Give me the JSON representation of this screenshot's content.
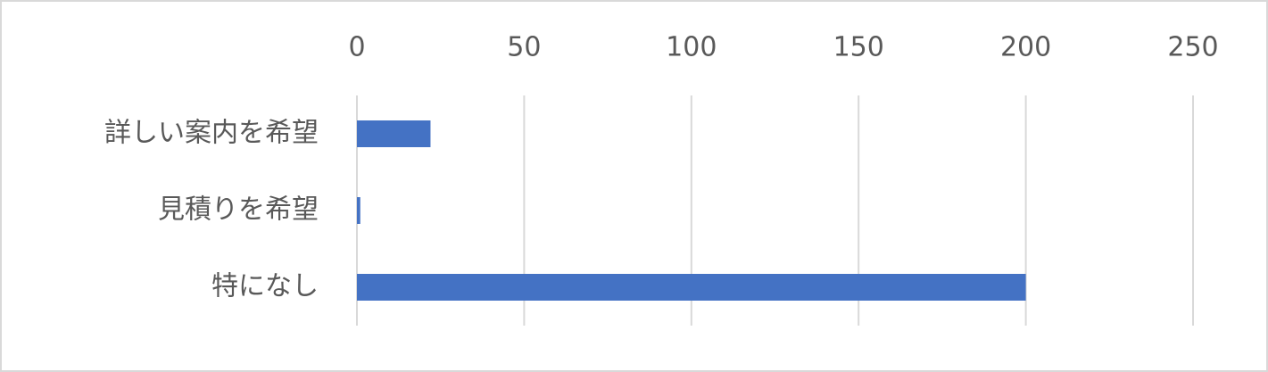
{
  "chart_data": {
    "type": "bar",
    "orientation": "horizontal",
    "categories": [
      "詳しい案内を希望",
      "見積りを希望",
      "特になし"
    ],
    "values": [
      22,
      1,
      200
    ],
    "color": "#4472c4",
    "xlim": [
      0,
      250
    ],
    "xticks": [
      0,
      50,
      100,
      150,
      200,
      250
    ],
    "grid": true
  }
}
